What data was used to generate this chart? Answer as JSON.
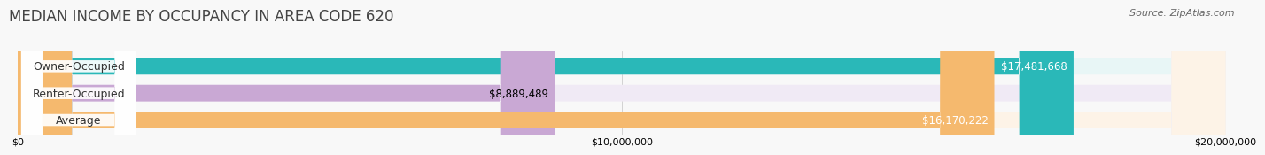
{
  "title": "MEDIAN INCOME BY OCCUPANCY IN AREA CODE 620",
  "source": "Source: ZipAtlas.com",
  "categories": [
    "Owner-Occupied",
    "Renter-Occupied",
    "Average"
  ],
  "values": [
    17481668,
    8889489,
    16170222
  ],
  "labels": [
    "$17,481,668",
    "$8,889,489",
    "$16,170,222"
  ],
  "bar_colors": [
    "#2ab8b8",
    "#c9a8d4",
    "#f5b96e"
  ],
  "bar_bg_colors": [
    "#e8f6f6",
    "#f0eaf5",
    "#fdf3e7"
  ],
  "label_colors": [
    "white",
    "black",
    "white"
  ],
  "xlim": [
    0,
    20000000
  ],
  "xticks": [
    0,
    10000000,
    20000000
  ],
  "xtick_labels": [
    "$0",
    "$10,000,000",
    "$20,000,000"
  ],
  "title_fontsize": 12,
  "source_fontsize": 8,
  "label_fontsize": 8.5,
  "cat_fontsize": 9,
  "background_color": "#f8f8f8"
}
